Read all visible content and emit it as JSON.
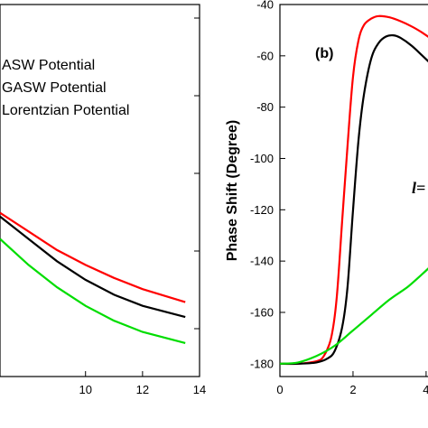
{
  "chart_data": [
    {
      "type": "line",
      "panel": "a",
      "xlabel": "",
      "ylabel": "",
      "xlim": [
        7,
        14
      ],
      "xticks": [
        10,
        12,
        14
      ],
      "legend": {
        "placement": "top-left",
        "entries": [
          "ASW Potential",
          "GASW Potential",
          "Lorentzian Potential"
        ]
      },
      "series": [
        {
          "name": "GASW Potential",
          "color": "#ff0000",
          "x": [
            7.0,
            8.0,
            9.0,
            10.0,
            11.0,
            12.0,
            13.5
          ],
          "y": [
            0.56,
            0.61,
            0.66,
            0.7,
            0.735,
            0.765,
            0.8
          ]
        },
        {
          "name": "ASW Potential",
          "color": "#000000",
          "x": [
            7.0,
            8.0,
            9.0,
            10.0,
            11.0,
            12.0,
            13.5
          ],
          "y": [
            0.57,
            0.63,
            0.69,
            0.74,
            0.78,
            0.81,
            0.84
          ]
        },
        {
          "name": "Lorentzian Potential",
          "color": "#00dd00",
          "x": [
            7.0,
            8.0,
            9.0,
            10.0,
            11.0,
            12.0,
            13.5
          ],
          "y": [
            0.63,
            0.7,
            0.76,
            0.81,
            0.85,
            0.88,
            0.91
          ]
        }
      ]
    },
    {
      "type": "line",
      "panel_label": "(b)",
      "xlabel": "",
      "ylabel": "Phase Shift (Degree)",
      "xlim": [
        0,
        4.2
      ],
      "ylim": [
        -185,
        -40
      ],
      "xticks": [
        0,
        2,
        4
      ],
      "yticks": [
        -40,
        -60,
        -80,
        -100,
        -120,
        -140,
        -160,
        -180
      ],
      "annotation": "l=",
      "series": [
        {
          "name": "",
          "color": "#ff0000",
          "x": [
            0,
            0.5,
            1.0,
            1.2,
            1.4,
            1.55,
            1.7,
            1.85,
            2.0,
            2.15,
            2.3,
            2.5,
            2.7,
            3.0,
            3.3,
            3.6,
            3.9,
            4.2
          ],
          "y": [
            -180,
            -180,
            -179,
            -177,
            -170,
            -155,
            -125,
            -95,
            -68,
            -54,
            -48,
            -45.5,
            -44.5,
            -45,
            -46.5,
            -48.5,
            -51,
            -54
          ]
        },
        {
          "name": "",
          "color": "#000000",
          "x": [
            0,
            0.5,
            1.0,
            1.3,
            1.5,
            1.7,
            1.85,
            2.0,
            2.15,
            2.3,
            2.5,
            2.7,
            2.9,
            3.1,
            3.3,
            3.6,
            3.9,
            4.2
          ],
          "y": [
            -180,
            -180,
            -179.5,
            -178,
            -175,
            -166,
            -150,
            -120,
            -93,
            -75,
            -61,
            -55,
            -52.5,
            -52,
            -53,
            -56,
            -60,
            -64
          ]
        },
        {
          "name": "",
          "color": "#00dd00",
          "x": [
            0,
            0.5,
            1.0,
            1.5,
            2.0,
            2.5,
            3.0,
            3.5,
            3.9,
            4.2
          ],
          "y": [
            -180,
            -179.5,
            -177,
            -173,
            -167,
            -161,
            -155,
            -150,
            -145,
            -141
          ]
        }
      ]
    }
  ]
}
